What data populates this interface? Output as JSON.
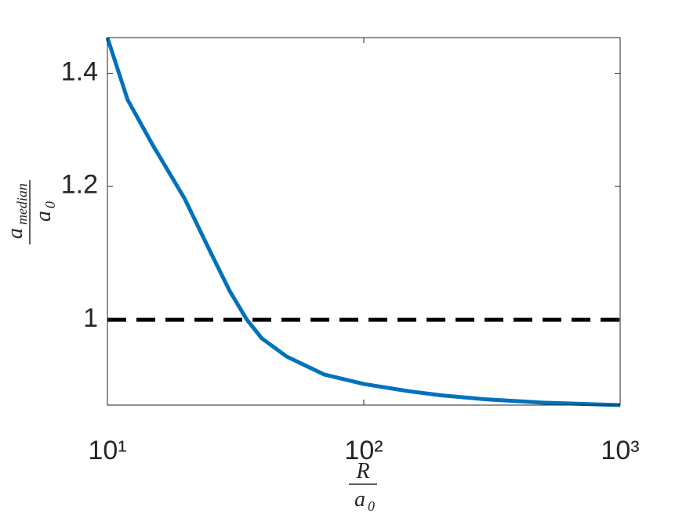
{
  "chart_data": {
    "type": "line",
    "x": [
      10,
      12,
      15,
      20,
      25,
      30,
      35,
      40,
      50,
      70,
      100,
      150,
      200,
      300,
      500,
      1000
    ],
    "series": [
      {
        "color": "#0072bd",
        "values": [
          1.47,
          1.35,
          1.27,
          1.18,
          1.1,
          1.04,
          1.0,
          0.975,
          0.951,
          0.928,
          0.916,
          0.907,
          0.902,
          0.897,
          0.893,
          0.89
        ]
      }
    ],
    "hlines": [
      {
        "value": 1,
        "color": "#000000",
        "dashed": true
      }
    ],
    "xlim": [
      10,
      1000
    ],
    "ylim": [
      0.89,
      1.47
    ],
    "xscale": "log",
    "yscale": "log",
    "xticks": [
      {
        "value": 10,
        "label": "10¹"
      },
      {
        "value": 100,
        "label": "10²"
      },
      {
        "value": 1000,
        "label": "10³"
      }
    ],
    "yticks": [
      1,
      1.2,
      1.4
    ],
    "xlabel": {
      "numerator": "R",
      "denominator": "a",
      "denominator_subscript": "0"
    },
    "ylabel": {
      "numerator": "a",
      "numerator_subscript": "median",
      "denominator": "a",
      "denominator_subscript": "0"
    }
  }
}
